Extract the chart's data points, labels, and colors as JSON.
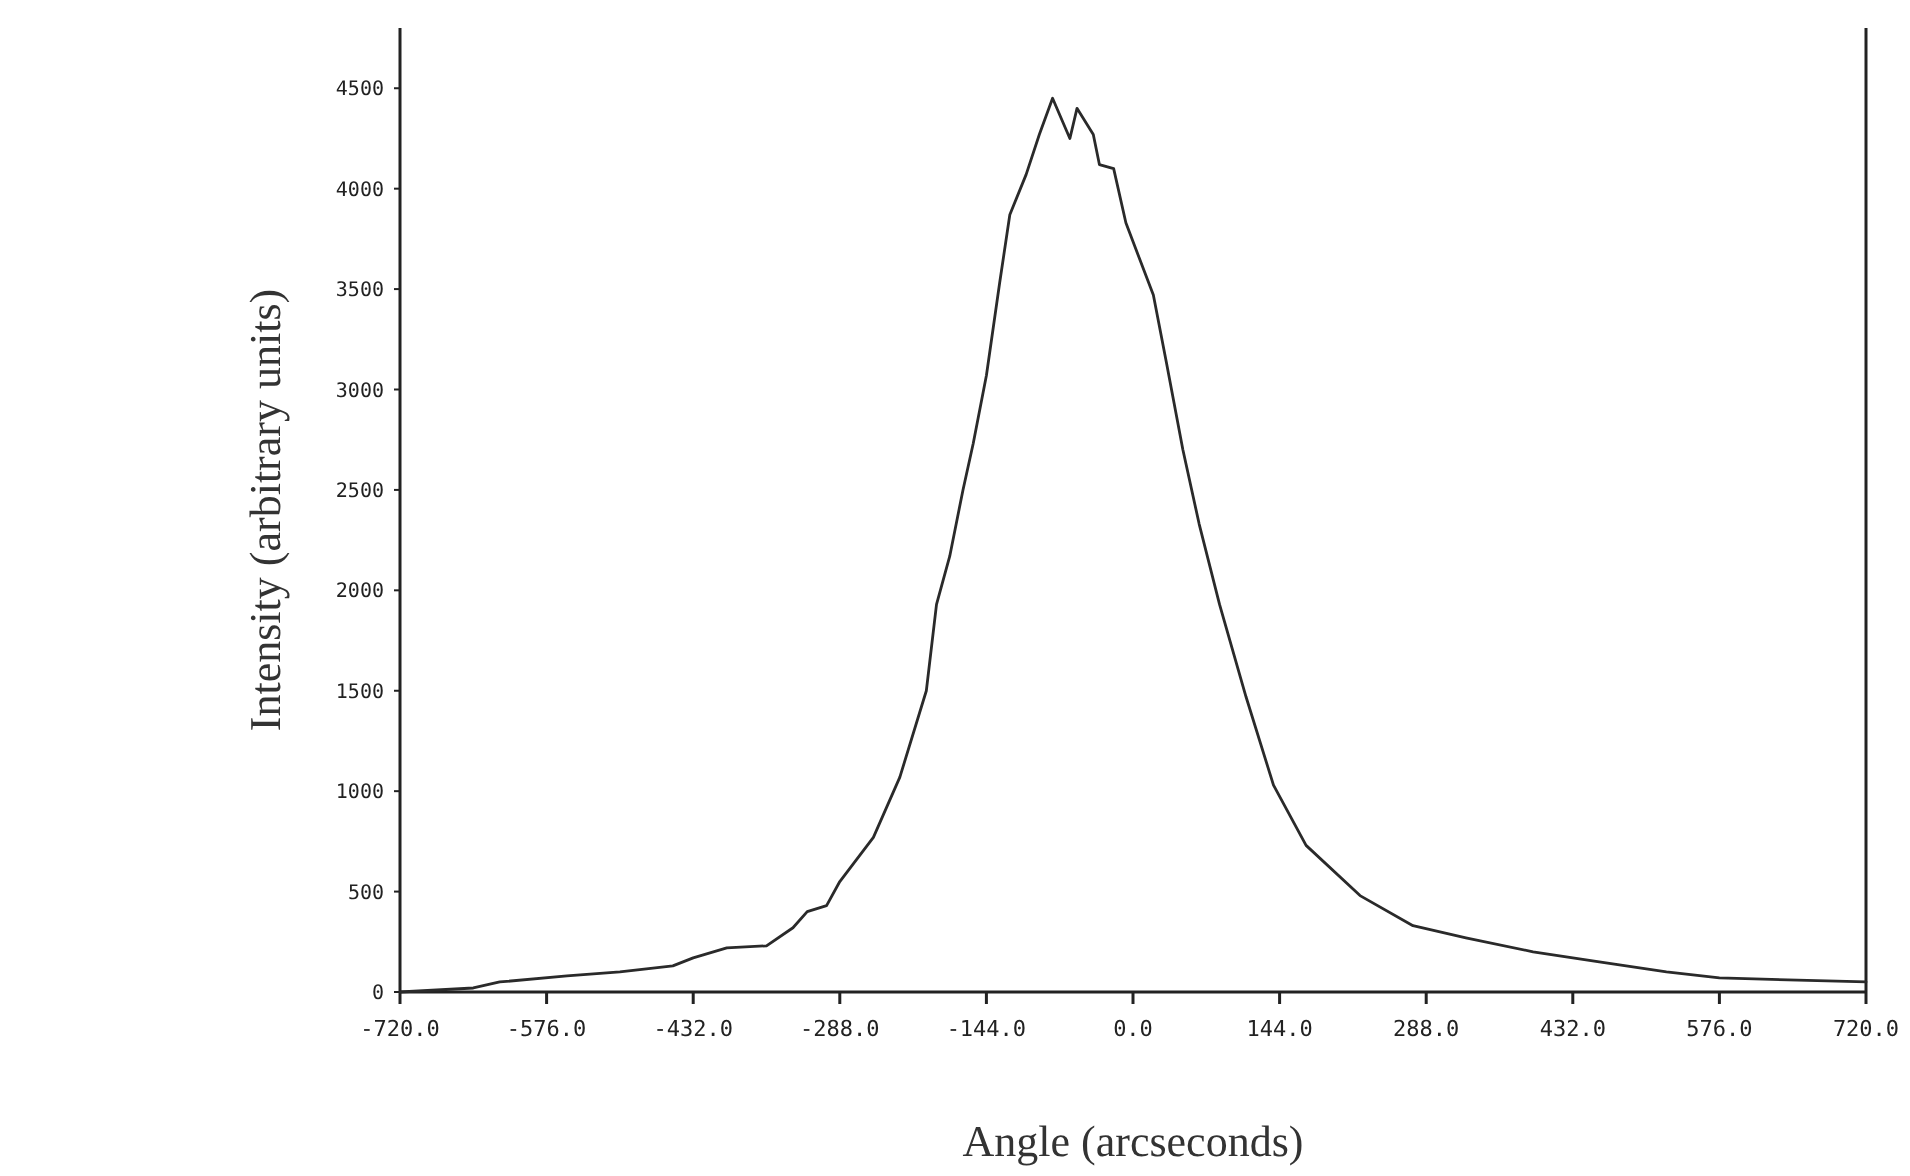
{
  "chart_data": {
    "type": "line",
    "xlabel": "Angle (arcseconds)",
    "ylabel": "Intensity (arbitrary units)",
    "xlim": [
      -720,
      720
    ],
    "ylim": [
      0,
      4800
    ],
    "xticks": [
      {
        "value": -720,
        "label": "-720.0"
      },
      {
        "value": -576,
        "label": "-576.0"
      },
      {
        "value": -432,
        "label": "-432.0"
      },
      {
        "value": -288,
        "label": "-288.0"
      },
      {
        "value": -144,
        "label": "-144.0"
      },
      {
        "value": 0,
        "label": "0.0"
      },
      {
        "value": 144,
        "label": "144.0"
      },
      {
        "value": 288,
        "label": "288.0"
      },
      {
        "value": 432,
        "label": "432.0"
      },
      {
        "value": 576,
        "label": "576.0"
      },
      {
        "value": 720,
        "label": "720.0"
      }
    ],
    "yticks": [
      0,
      500,
      1000,
      1500,
      2000,
      2500,
      3000,
      3500,
      4000,
      4500
    ],
    "grid": false,
    "line_style": "solid",
    "series": [
      {
        "color": "#2a2a2a",
        "x": [
          -720,
          -648,
          -622,
          -556,
          -504,
          -452,
          -432,
          -399,
          -360,
          -334,
          -320,
          -301,
          -288,
          -255,
          -229,
          -203,
          -193,
          -180,
          -167,
          -157,
          -144,
          -131,
          -121,
          -105,
          -92,
          -79,
          -62,
          -55,
          -39,
          -33,
          -19,
          -7,
          20,
          33,
          49,
          65,
          85,
          111,
          138,
          170,
          223,
          275,
          327,
          393,
          458,
          524,
          576,
          720
        ],
        "values": [
          0,
          20,
          50,
          80,
          100,
          130,
          170,
          220,
          230,
          320,
          400,
          430,
          550,
          770,
          1070,
          1500,
          1930,
          2170,
          2500,
          2730,
          3070,
          3530,
          3870,
          4070,
          4270,
          4450,
          4250,
          4400,
          4270,
          4120,
          4100,
          3830,
          3470,
          3130,
          2700,
          2330,
          1930,
          1470,
          1030,
          730,
          480,
          330,
          270,
          200,
          150,
          100,
          70,
          50
        ]
      }
    ]
  }
}
